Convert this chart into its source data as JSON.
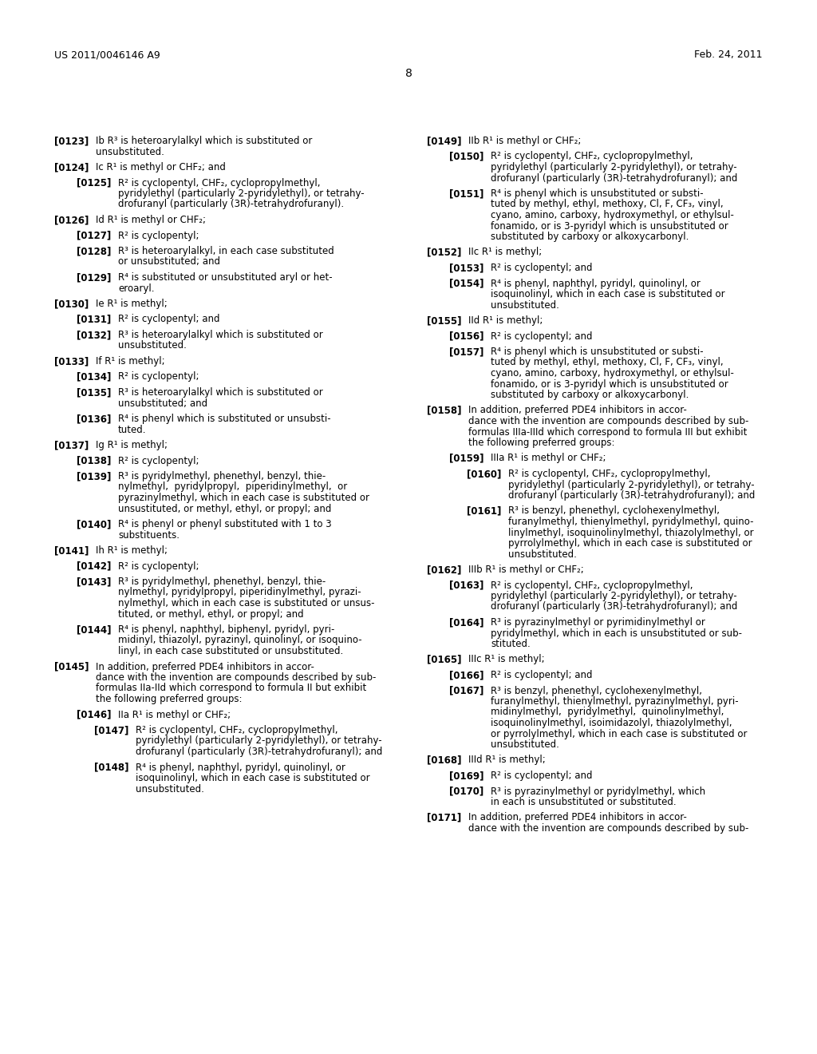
{
  "page_number": "8",
  "header_left": "US 2011/0046146 A9",
  "header_right": "Feb. 24, 2011",
  "background_color": "#ffffff",
  "text_color": "#000000",
  "paragraphs_col1": [
    {
      "tag": "[0123]",
      "indent": 0,
      "lines": [
        "Ib R³ is heteroarylalkyl which is substituted or",
        "unsubstituted."
      ]
    },
    {
      "tag": "[0124]",
      "indent": 0,
      "lines": [
        "Ic R¹ is methyl or CHF₂; and"
      ]
    },
    {
      "tag": "[0125]",
      "indent": 1,
      "lines": [
        "R² is cyclopentyl, CHF₂, cyclopropylmethyl,",
        "pyridylethyl (particularly 2-pyridylethyl), or tetrahy-",
        "drofuranyl (particularly (3R)-tetrahydrofuranyl)."
      ]
    },
    {
      "tag": "[0126]",
      "indent": 0,
      "lines": [
        "Id R¹ is methyl or CHF₂;"
      ]
    },
    {
      "tag": "[0127]",
      "indent": 1,
      "lines": [
        "R² is cyclopentyl;"
      ]
    },
    {
      "tag": "[0128]",
      "indent": 1,
      "lines": [
        "R³ is heteroarylalkyl, in each case substituted",
        "or unsubstituted; and"
      ]
    },
    {
      "tag": "[0129]",
      "indent": 1,
      "lines": [
        "R⁴ is substituted or unsubstituted aryl or het-",
        "eroaryl."
      ]
    },
    {
      "tag": "[0130]",
      "indent": 0,
      "lines": [
        "Ie R¹ is methyl;"
      ]
    },
    {
      "tag": "[0131]",
      "indent": 1,
      "lines": [
        "R² is cyclopentyl; and"
      ]
    },
    {
      "tag": "[0132]",
      "indent": 1,
      "lines": [
        "R³ is heteroarylalkyl which is substituted or",
        "unsubstituted."
      ]
    },
    {
      "tag": "[0133]",
      "indent": 0,
      "lines": [
        "If R¹ is methyl;"
      ]
    },
    {
      "tag": "[0134]",
      "indent": 1,
      "lines": [
        "R² is cyclopentyl;"
      ]
    },
    {
      "tag": "[0135]",
      "indent": 1,
      "lines": [
        "R³ is heteroarylalkyl which is substituted or",
        "unsubstituted; and"
      ]
    },
    {
      "tag": "[0136]",
      "indent": 1,
      "lines": [
        "R⁴ is phenyl which is substituted or unsubsti-",
        "tuted."
      ]
    },
    {
      "tag": "[0137]",
      "indent": 0,
      "lines": [
        "Ig R¹ is methyl;"
      ]
    },
    {
      "tag": "[0138]",
      "indent": 1,
      "lines": [
        "R² is cyclopentyl;"
      ]
    },
    {
      "tag": "[0139]",
      "indent": 1,
      "lines": [
        "R³ is pyridylmethyl, phenethyl, benzyl, thie-",
        "nylmethyl,  pyridylpropyl,  piperidinylmethyl,  or",
        "pyrazinylmethyl, which in each case is substituted or",
        "unsustituted, or methyl, ethyl, or propyl; and"
      ]
    },
    {
      "tag": "[0140]",
      "indent": 1,
      "lines": [
        "R⁴ is phenyl or phenyl substituted with 1 to 3",
        "substituents."
      ]
    },
    {
      "tag": "[0141]",
      "indent": 0,
      "lines": [
        "Ih R¹ is methyl;"
      ]
    },
    {
      "tag": "[0142]",
      "indent": 1,
      "lines": [
        "R² is cyclopentyl;"
      ]
    },
    {
      "tag": "[0143]",
      "indent": 1,
      "lines": [
        "R³ is pyridylmethyl, phenethyl, benzyl, thie-",
        "nylmethyl, pyridylpropyl, piperidinylmethyl, pyrazi-",
        "nylmethyl, which in each case is substituted or unsus-",
        "tituted, or methyl, ethyl, or propyl; and"
      ]
    },
    {
      "tag": "[0144]",
      "indent": 1,
      "lines": [
        "R⁴ is phenyl, naphthyl, biphenyl, pyridyl, pyri-",
        "midinyl, thiazolyl, pyrazinyl, quinolinyl, or isoquino-",
        "linyl, in each case substituted or unsubstituted."
      ]
    },
    {
      "tag": "[0145]",
      "indent": 0,
      "lines": [
        "In addition, preferred PDE4 inhibitors in accor-",
        "dance with the invention are compounds described by sub-",
        "formulas IIa-IId which correspond to formula II but exhibit",
        "the following preferred groups:"
      ]
    },
    {
      "tag": "[0146]",
      "indent": 1,
      "lines": [
        "IIa R¹ is methyl or CHF₂;"
      ]
    },
    {
      "tag": "[0147]",
      "indent": 2,
      "lines": [
        "R² is cyclopentyl, CHF₂, cyclopropylmethyl,",
        "pyridylethyl (particularly 2-pyridylethyl), or tetrahy-",
        "drofuranyl (particularly (3R)-tetrahydrofuranyl); and"
      ]
    },
    {
      "tag": "[0148]",
      "indent": 2,
      "lines": [
        "R⁴ is phenyl, naphthyl, pyridyl, quinolinyl, or",
        "isoquinolinyl, which in each case is substituted or",
        "unsubstituted."
      ]
    }
  ],
  "paragraphs_col2": [
    {
      "tag": "[0149]",
      "indent": 0,
      "lines": [
        "IIb R¹ is methyl or CHF₂;"
      ]
    },
    {
      "tag": "[0150]",
      "indent": 1,
      "lines": [
        "R² is cyclopentyl, CHF₂, cyclopropylmethyl,",
        "pyridylethyl (particularly 2-pyridylethyl), or tetrahy-",
        "drofuranyl (particularly (3R)-tetrahydrofuranyl); and"
      ]
    },
    {
      "tag": "[0151]",
      "indent": 1,
      "lines": [
        "R⁴ is phenyl which is unsubstituted or substi-",
        "tuted by methyl, ethyl, methoxy, Cl, F, CF₃, vinyl,",
        "cyano, amino, carboxy, hydroxymethyl, or ethylsul-",
        "fonamido, or is 3-pyridyl which is unsubstituted or",
        "substituted by carboxy or alkoxycarbonyl."
      ]
    },
    {
      "tag": "[0152]",
      "indent": 0,
      "lines": [
        "IIc R¹ is methyl;"
      ]
    },
    {
      "tag": "[0153]",
      "indent": 1,
      "lines": [
        "R² is cyclopentyl; and"
      ]
    },
    {
      "tag": "[0154]",
      "indent": 1,
      "lines": [
        "R⁴ is phenyl, naphthyl, pyridyl, quinolinyl, or",
        "isoquinolinyl, which in each case is substituted or",
        "unsubstituted."
      ]
    },
    {
      "tag": "[0155]",
      "indent": 0,
      "lines": [
        "IId R¹ is methyl;"
      ]
    },
    {
      "tag": "[0156]",
      "indent": 1,
      "lines": [
        "R² is cyclopentyl; and"
      ]
    },
    {
      "tag": "[0157]",
      "indent": 1,
      "lines": [
        "R⁴ is phenyl which is unsubstituted or substi-",
        "tuted by methyl, ethyl, methoxy, Cl, F, CF₃, vinyl,",
        "cyano, amino, carboxy, hydroxymethyl, or ethylsul-",
        "fonamido, or is 3-pyridyl which is unsubstituted or",
        "substituted by carboxy or alkoxycarbonyl."
      ]
    },
    {
      "tag": "[0158]",
      "indent": 0,
      "lines": [
        "In addition, preferred PDE4 inhibitors in accor-",
        "dance with the invention are compounds described by sub-",
        "formulas IIIa-IIId which correspond to formula III but exhibit",
        "the following preferred groups:"
      ]
    },
    {
      "tag": "[0159]",
      "indent": 1,
      "lines": [
        "IIIa R¹ is methyl or CHF₂;"
      ]
    },
    {
      "tag": "[0160]",
      "indent": 2,
      "lines": [
        "R² is cyclopentyl, CHF₂, cyclopropylmethyl,",
        "pyridylethyl (particularly 2-pyridylethyl), or tetrahy-",
        "drofuranyl (particularly (3R)-tetrahydrofuranyl); and"
      ]
    },
    {
      "tag": "[0161]",
      "indent": 2,
      "lines": [
        "R³ is benzyl, phenethyl, cyclohexenylmethyl,",
        "furanylmethyl, thienylmethyl, pyridylmethyl, quino-",
        "linylmethyl, isoquinolinylmethyl, thiazolylmethyl, or",
        "pyrrolylmethyl, which in each case is substituted or",
        "unsubstituted."
      ]
    },
    {
      "tag": "[0162]",
      "indent": 0,
      "lines": [
        "IIIb R¹ is methyl or CHF₂;"
      ]
    },
    {
      "tag": "[0163]",
      "indent": 1,
      "lines": [
        "R² is cyclopentyl, CHF₂, cyclopropylmethyl,",
        "pyridylethyl (particularly 2-pyridylethyl), or tetrahy-",
        "drofuranyl (particularly (3R)-tetrahydrofuranyl); and"
      ]
    },
    {
      "tag": "[0164]",
      "indent": 1,
      "lines": [
        "R³ is pyrazinylmethyl or pyrimidinylmethyl or",
        "pyridylmethyl, which in each is unsubstituted or sub-",
        "stituted."
      ]
    },
    {
      "tag": "[0165]",
      "indent": 0,
      "lines": [
        "IIIc R¹ is methyl;"
      ]
    },
    {
      "tag": "[0166]",
      "indent": 1,
      "lines": [
        "R² is cyclopentyl; and"
      ]
    },
    {
      "tag": "[0167]",
      "indent": 1,
      "lines": [
        "R³ is benzyl, phenethyl, cyclohexenylmethyl,",
        "furanylmethyl, thienylmethyl, pyrazinylmethyl, pyri-",
        "midinylmethyl,  pyridylmethyl,  quinolinylmethyl,",
        "isoquinolinylmethyl, isoimidazolyl, thiazolylmethyl,",
        "or pyrrolylmethyl, which in each case is substituted or",
        "unsubstituted."
      ]
    },
    {
      "tag": "[0168]",
      "indent": 0,
      "lines": [
        "IIId R¹ is methyl;"
      ]
    },
    {
      "tag": "[0169]",
      "indent": 1,
      "lines": [
        "R² is cyclopentyl; and"
      ]
    },
    {
      "tag": "[0170]",
      "indent": 1,
      "lines": [
        "R³ is pyrazinylmethyl or pyridylmethyl, which",
        "in each is unsubstituted or substituted."
      ]
    },
    {
      "tag": "[0171]",
      "indent": 0,
      "lines": [
        "In addition, preferred PDE4 inhibitors in accor-",
        "dance with the invention are compounds described by sub-"
      ]
    }
  ]
}
